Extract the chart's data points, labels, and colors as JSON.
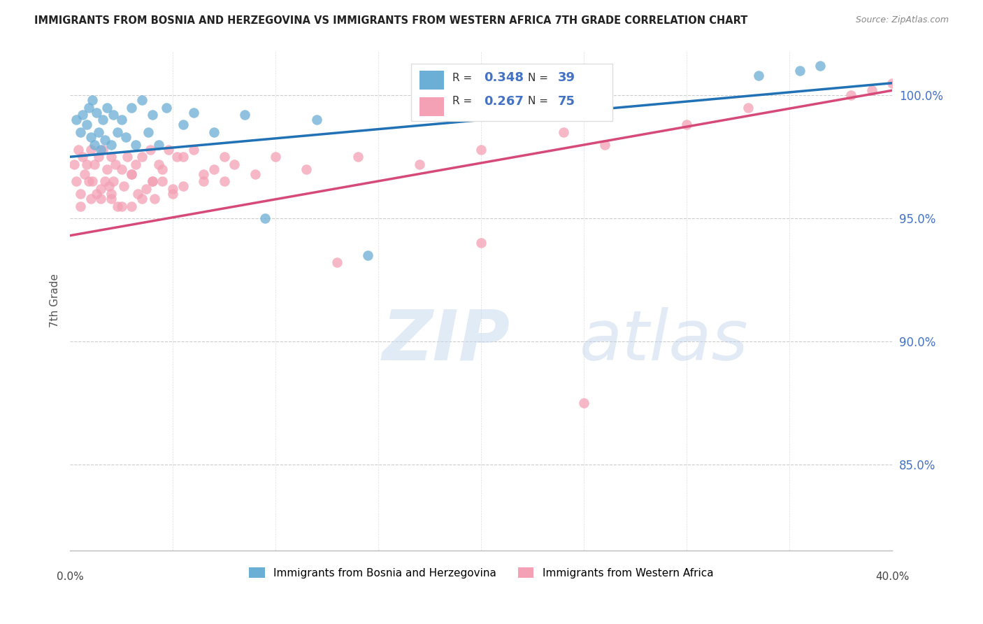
{
  "title": "IMMIGRANTS FROM BOSNIA AND HERZEGOVINA VS IMMIGRANTS FROM WESTERN AFRICA 7TH GRADE CORRELATION CHART",
  "source": "Source: ZipAtlas.com",
  "ylabel": "7th Grade",
  "x_min": 0.0,
  "x_max": 40.0,
  "y_min": 81.5,
  "y_max": 101.8,
  "y_ticks": [
    85.0,
    90.0,
    95.0,
    100.0
  ],
  "y_tick_labels": [
    "85.0%",
    "90.0%",
    "95.0%",
    "100.0%"
  ],
  "blue_R": "0.348",
  "blue_N": "39",
  "pink_R": "0.267",
  "pink_N": "75",
  "blue_color": "#6baed6",
  "pink_color": "#f4a0b5",
  "blue_line_color": "#2171b5",
  "pink_line_color": "#d64a7a",
  "legend_label_blue": "Immigrants from Bosnia and Herzegovina",
  "legend_label_pink": "Immigrants from Western Africa",
  "watermark_zip": "ZIP",
  "watermark_atlas": "atlas",
  "blue_scatter_x": [
    0.3,
    0.5,
    0.6,
    0.8,
    0.9,
    1.0,
    1.1,
    1.2,
    1.3,
    1.4,
    1.5,
    1.6,
    1.7,
    1.8,
    2.0,
    2.1,
    2.3,
    2.5,
    2.7,
    3.0,
    3.2,
    3.5,
    3.8,
    4.0,
    4.3,
    4.7,
    5.5,
    6.0,
    7.0,
    8.5,
    9.5,
    12.0,
    14.5,
    19.0,
    21.0,
    24.0,
    33.5,
    35.5,
    36.5
  ],
  "blue_scatter_y": [
    99.0,
    98.5,
    99.2,
    98.8,
    99.5,
    98.3,
    99.8,
    98.0,
    99.3,
    98.5,
    97.8,
    99.0,
    98.2,
    99.5,
    98.0,
    99.2,
    98.5,
    99.0,
    98.3,
    99.5,
    98.0,
    99.8,
    98.5,
    99.2,
    98.0,
    99.5,
    98.8,
    99.3,
    98.5,
    99.2,
    95.0,
    99.0,
    93.5,
    99.8,
    100.5,
    99.5,
    100.8,
    101.0,
    101.2
  ],
  "pink_scatter_x": [
    0.2,
    0.3,
    0.4,
    0.5,
    0.6,
    0.7,
    0.8,
    0.9,
    1.0,
    1.0,
    1.1,
    1.2,
    1.3,
    1.4,
    1.5,
    1.6,
    1.7,
    1.8,
    1.9,
    2.0,
    2.0,
    2.1,
    2.2,
    2.3,
    2.5,
    2.6,
    2.8,
    3.0,
    3.0,
    3.2,
    3.3,
    3.5,
    3.7,
    3.9,
    4.0,
    4.1,
    4.3,
    4.5,
    4.8,
    5.0,
    5.2,
    5.5,
    6.0,
    6.5,
    7.0,
    7.5,
    8.0,
    9.0,
    10.0,
    11.5,
    14.0,
    17.0,
    20.0,
    24.0,
    26.0,
    30.0,
    33.0,
    38.0,
    39.0,
    40.0,
    0.5,
    1.5,
    2.0,
    2.5,
    3.0,
    3.5,
    4.0,
    4.5,
    5.0,
    5.5,
    6.5,
    7.5,
    13.0,
    20.0,
    25.0
  ],
  "pink_scatter_y": [
    97.2,
    96.5,
    97.8,
    96.0,
    97.5,
    96.8,
    97.2,
    96.5,
    97.8,
    95.8,
    96.5,
    97.2,
    96.0,
    97.5,
    96.2,
    97.8,
    96.5,
    97.0,
    96.3,
    97.5,
    95.8,
    96.5,
    97.2,
    95.5,
    97.0,
    96.3,
    97.5,
    96.8,
    95.5,
    97.2,
    96.0,
    97.5,
    96.2,
    97.8,
    96.5,
    95.8,
    97.2,
    96.5,
    97.8,
    96.0,
    97.5,
    96.3,
    97.8,
    96.5,
    97.0,
    96.5,
    97.2,
    96.8,
    97.5,
    97.0,
    97.5,
    97.2,
    97.8,
    98.5,
    98.0,
    98.8,
    99.5,
    100.0,
    100.2,
    100.5,
    95.5,
    95.8,
    96.0,
    95.5,
    96.8,
    95.8,
    96.5,
    97.0,
    96.2,
    97.5,
    96.8,
    97.5,
    93.2,
    94.0,
    87.5
  ]
}
